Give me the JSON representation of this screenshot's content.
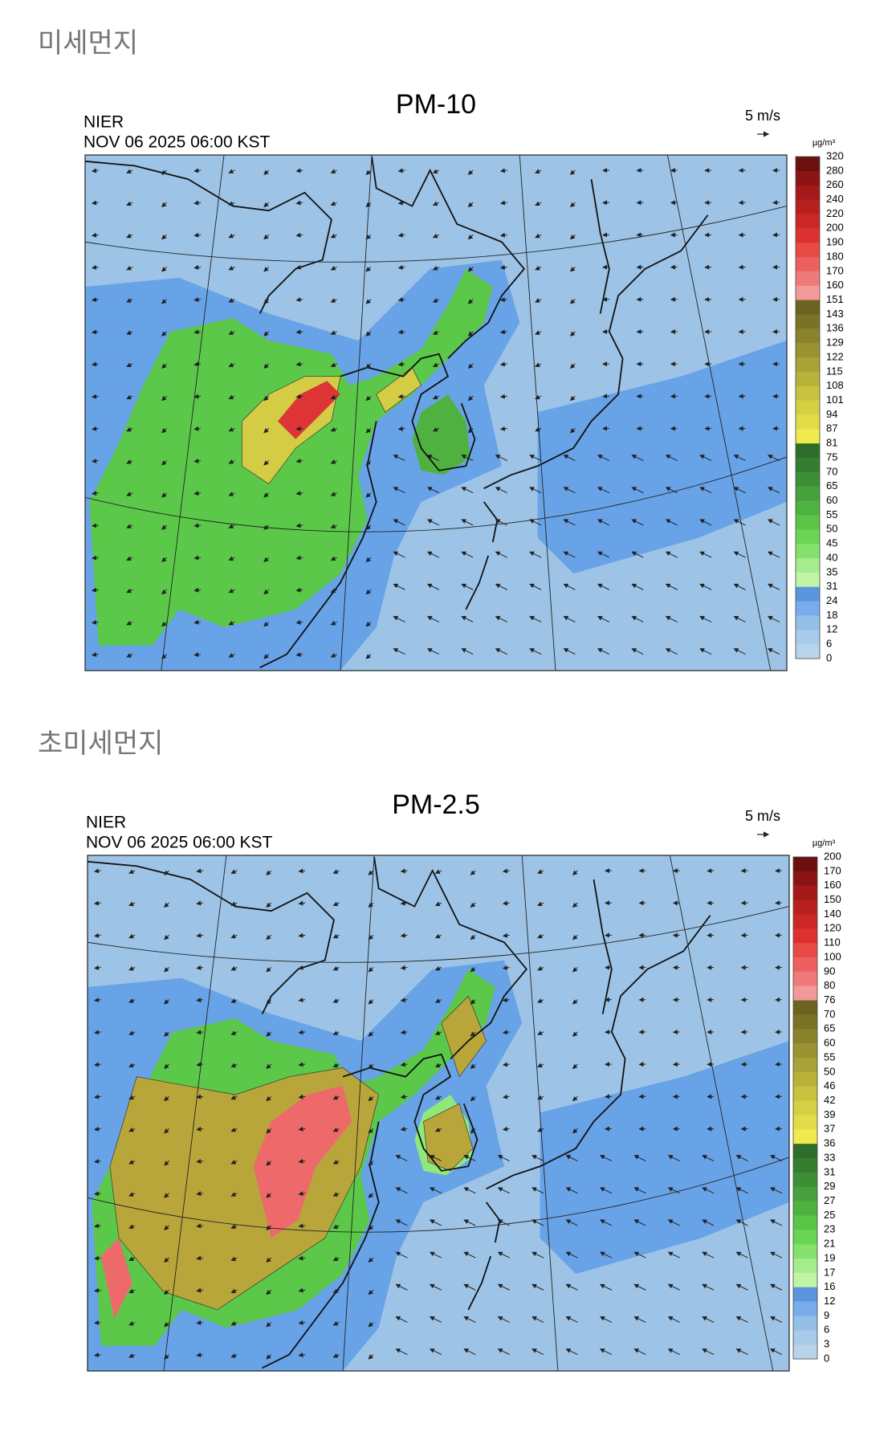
{
  "sections": [
    {
      "heading": "미세먼지",
      "title": "PM-10",
      "source": "NIER",
      "time": "NOV 06 2025 06:00 KST",
      "wind_scale": "5 m/s",
      "unit": "µg/m³",
      "legend": [
        320,
        280,
        260,
        240,
        220,
        200,
        190,
        180,
        170,
        160,
        151,
        143,
        136,
        129,
        122,
        115,
        108,
        101,
        94,
        87,
        81,
        75,
        70,
        65,
        60,
        55,
        50,
        45,
        40,
        35,
        31,
        24,
        18,
        12,
        6,
        0
      ]
    },
    {
      "heading": "초미세먼지",
      "title": "PM-2.5",
      "source": "NIER",
      "time": "NOV 06 2025 06:00 KST",
      "wind_scale": "5 m/s",
      "unit": "µg/m³",
      "legend": [
        200,
        170,
        160,
        150,
        140,
        120,
        110,
        100,
        90,
        80,
        76,
        70,
        65,
        60,
        55,
        50,
        46,
        42,
        39,
        37,
        36,
        33,
        31,
        29,
        27,
        25,
        23,
        21,
        19,
        17,
        16,
        12,
        9,
        6,
        3,
        0
      ]
    }
  ]
}
